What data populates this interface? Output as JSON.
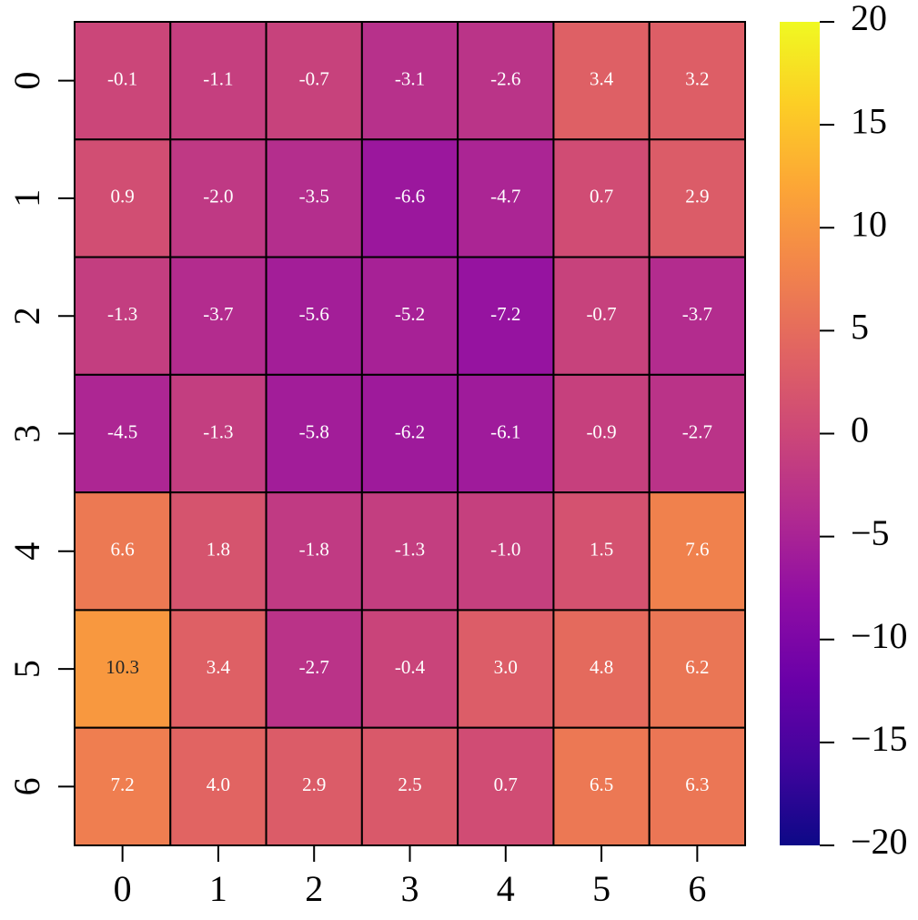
{
  "chart_data": {
    "type": "heatmap",
    "categories": [
      "0",
      "1",
      "2",
      "3",
      "4",
      "5",
      "6"
    ],
    "y_categories": [
      "0",
      "1",
      "2",
      "3",
      "4",
      "5",
      "6"
    ],
    "values": [
      [
        -0.1,
        -1.1,
        -0.7,
        -3.1,
        -2.6,
        3.4,
        3.2
      ],
      [
        0.9,
        -2.0,
        -3.5,
        -6.6,
        -4.7,
        0.7,
        2.9
      ],
      [
        -1.3,
        -3.7,
        -5.6,
        -5.2,
        -7.2,
        -0.7,
        -3.7
      ],
      [
        -4.5,
        -1.3,
        -5.8,
        -6.2,
        -6.1,
        -0.9,
        -2.7
      ],
      [
        6.6,
        1.8,
        -1.8,
        -1.3,
        -1.0,
        1.5,
        7.6
      ],
      [
        10.3,
        3.4,
        -2.7,
        -0.4,
        3.0,
        4.8,
        6.2
      ],
      [
        7.2,
        4.0,
        2.9,
        2.5,
        0.7,
        6.5,
        6.3
      ]
    ],
    "value_labels": [
      [
        "-0.1",
        "-1.1",
        "-0.7",
        "-3.1",
        "-2.6",
        "3.4",
        "3.2"
      ],
      [
        "0.9",
        "-2.0",
        "-3.5",
        "-6.6",
        "-4.7",
        "0.7",
        "2.9"
      ],
      [
        "-1.3",
        "-3.7",
        "-5.6",
        "-5.2",
        "-7.2",
        "-0.7",
        "-3.7"
      ],
      [
        "-4.5",
        "-1.3",
        "-5.8",
        "-6.2",
        "-6.1",
        "-0.9",
        "-2.7"
      ],
      [
        "6.6",
        "1.8",
        "-1.8",
        "-1.3",
        "-1.0",
        "1.5",
        "7.6"
      ],
      [
        "10.3",
        "3.4",
        "-2.7",
        "-0.4",
        "3.0",
        "4.8",
        "6.2"
      ],
      [
        "7.2",
        "4.0",
        "2.9",
        "2.5",
        "0.7",
        "6.5",
        "6.3"
      ]
    ],
    "colormap": "plasma",
    "clim": [
      -20,
      20
    ],
    "cticks": [
      {
        "value": -20,
        "label": "−20"
      },
      {
        "value": -15,
        "label": "−15"
      },
      {
        "value": -10,
        "label": "−10"
      },
      {
        "value": -5,
        "label": "−5"
      },
      0,
      5,
      10,
      15,
      20
    ]
  }
}
